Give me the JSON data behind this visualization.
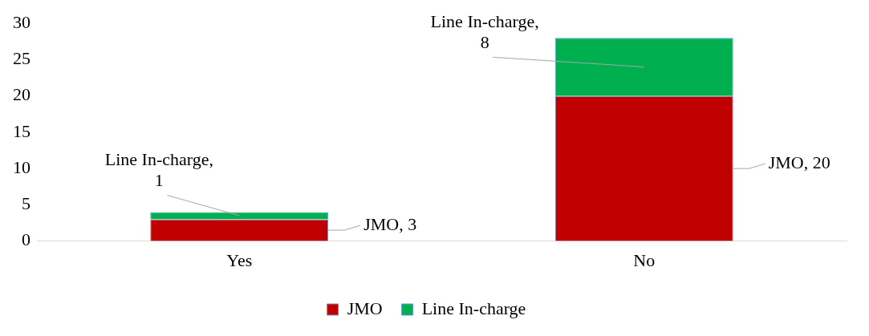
{
  "chart_data": {
    "type": "bar",
    "stacked": true,
    "categories": [
      "Yes",
      "No"
    ],
    "series": [
      {
        "name": "JMO",
        "color": "#c00000",
        "values": [
          3,
          20
        ],
        "value_labels": [
          "JMO, 3",
          "JMO, 20"
        ]
      },
      {
        "name": "Line In-charge",
        "color": "#00b050",
        "values": [
          1,
          8
        ],
        "value_labels": [
          "Line In-charge, 1",
          "Line In-charge, 8"
        ]
      }
    ],
    "ylim": [
      0,
      30
    ],
    "yticks": [
      0,
      5,
      10,
      15,
      20,
      25,
      30
    ],
    "grid": false,
    "legend": "bottom"
  }
}
